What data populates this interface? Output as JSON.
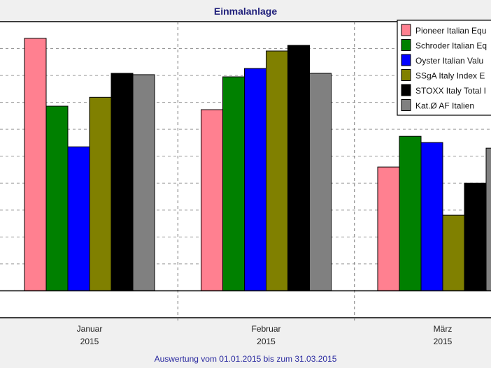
{
  "chart_data": {
    "type": "bar",
    "title": "Einmalanlage",
    "xlabel": "",
    "ylabel": "",
    "footer": "Auswertung vom 01.01.2015 bis zum 31.03.2015",
    "categories": [
      {
        "month": "Januar",
        "year": "2015"
      },
      {
        "month": "Februar",
        "year": "2015"
      },
      {
        "month": "März",
        "year": "2015"
      }
    ],
    "ylim": [
      -1,
      10
    ],
    "grid": true,
    "legend_placement": "top-right",
    "series": [
      {
        "name": "Pioneer Italian Equ",
        "color": "#ff8090",
        "values": [
          9.38,
          6.73,
          4.6
        ]
      },
      {
        "name": "Schroder Italian Eq",
        "color": "#008000",
        "values": [
          6.86,
          7.95,
          5.74
        ]
      },
      {
        "name": "Oyster Italian Valu",
        "color": "#0000ff",
        "values": [
          5.35,
          8.26,
          5.51
        ]
      },
      {
        "name": "SSgA Italy Index E",
        "color": "#808000",
        "values": [
          7.19,
          8.91,
          2.81
        ]
      },
      {
        "name": "STOXX Italy Total I",
        "color": "#000000",
        "values": [
          8.08,
          9.12,
          4.0
        ]
      },
      {
        "name": "Kat.Ø AF Italien",
        "color": "#808080",
        "values": [
          8.03,
          8.08,
          5.3
        ]
      }
    ]
  }
}
